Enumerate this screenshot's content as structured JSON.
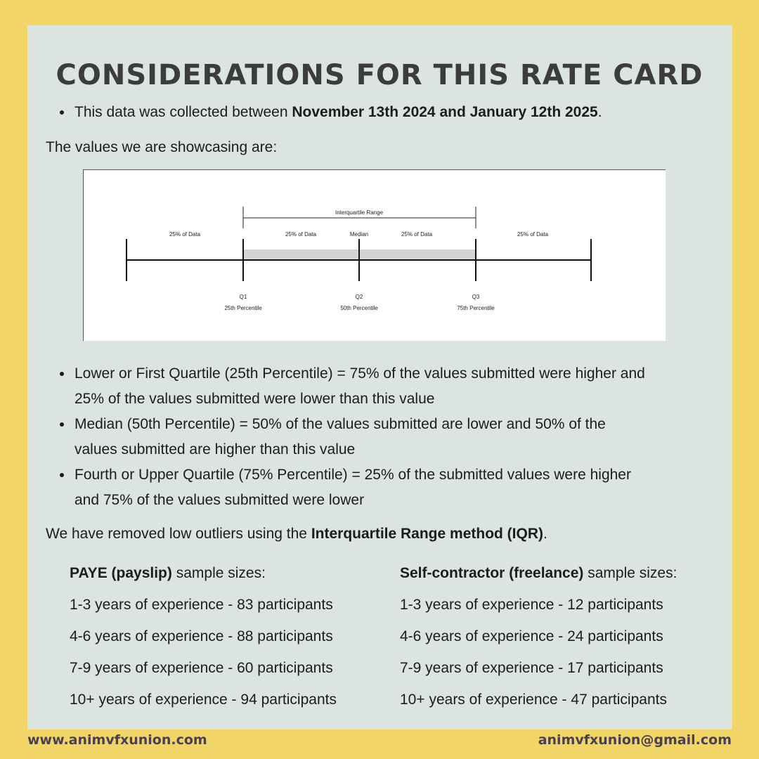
{
  "title": "CONSIDERATIONS FOR THIS RATE CARD",
  "collected": {
    "prefix": "This data was collected between ",
    "dates": "November 13th 2024 and January 12th 2025",
    "suffix": "."
  },
  "values_intro": "The values we are showcasing are:",
  "diagram": {
    "iqr_label": "Interquartile Range",
    "segment_label": "25% of Data",
    "median_label": "Median",
    "q1": "Q1",
    "q1_sub": "25th Percentile",
    "q2": "Q2",
    "q2_sub": "50th Percentile",
    "q3": "Q3",
    "q3_sub": "75th Percentile"
  },
  "definitions": [
    {
      "line1": "Lower or First Quartile (25th Percentile) = 75% of the values submitted were higher and",
      "line2": "25% of the values submitted were lower than this value"
    },
    {
      "line1": "Median (50th Percentile) = 50% of the values submitted are lower and 50% of the",
      "line2": "values submitted are higher than this value"
    },
    {
      "line1": "Fourth or Upper Quartile (75% Percentile) = 25% of the submitted values were higher",
      "line2": "and 75% of the values submitted were lower"
    }
  ],
  "outliers": {
    "prefix": "We have removed low outliers using the ",
    "method": "Interquartile Range method (IQR)",
    "suffix": "."
  },
  "paye": {
    "heading_bold": "PAYE (payslip)",
    "heading_rest": " sample sizes:",
    "rows": [
      "1-3 years of experience - 83 participants",
      "4-6 years of experience - 88 participants",
      "7-9 years of experience - 60 participants",
      "10+ years of experience - 94 participants"
    ]
  },
  "freelance": {
    "heading_bold": "Self-contractor (freelance)",
    "heading_rest": " sample sizes:",
    "rows": [
      "1-3 years of experience - 12 participants",
      "4-6 years of experience - 24 participants",
      "7-9 years of experience - 17 participants",
      "10+ years of experience - 47 participants"
    ]
  },
  "footer": {
    "website": "www.animvfxunion.com",
    "email": "animvfxunion@gmail.com"
  },
  "colors": {
    "frame": "#f1d567",
    "card": "#dbe4df",
    "title": "#3c3c3c",
    "footer_text": "#4a4050"
  }
}
